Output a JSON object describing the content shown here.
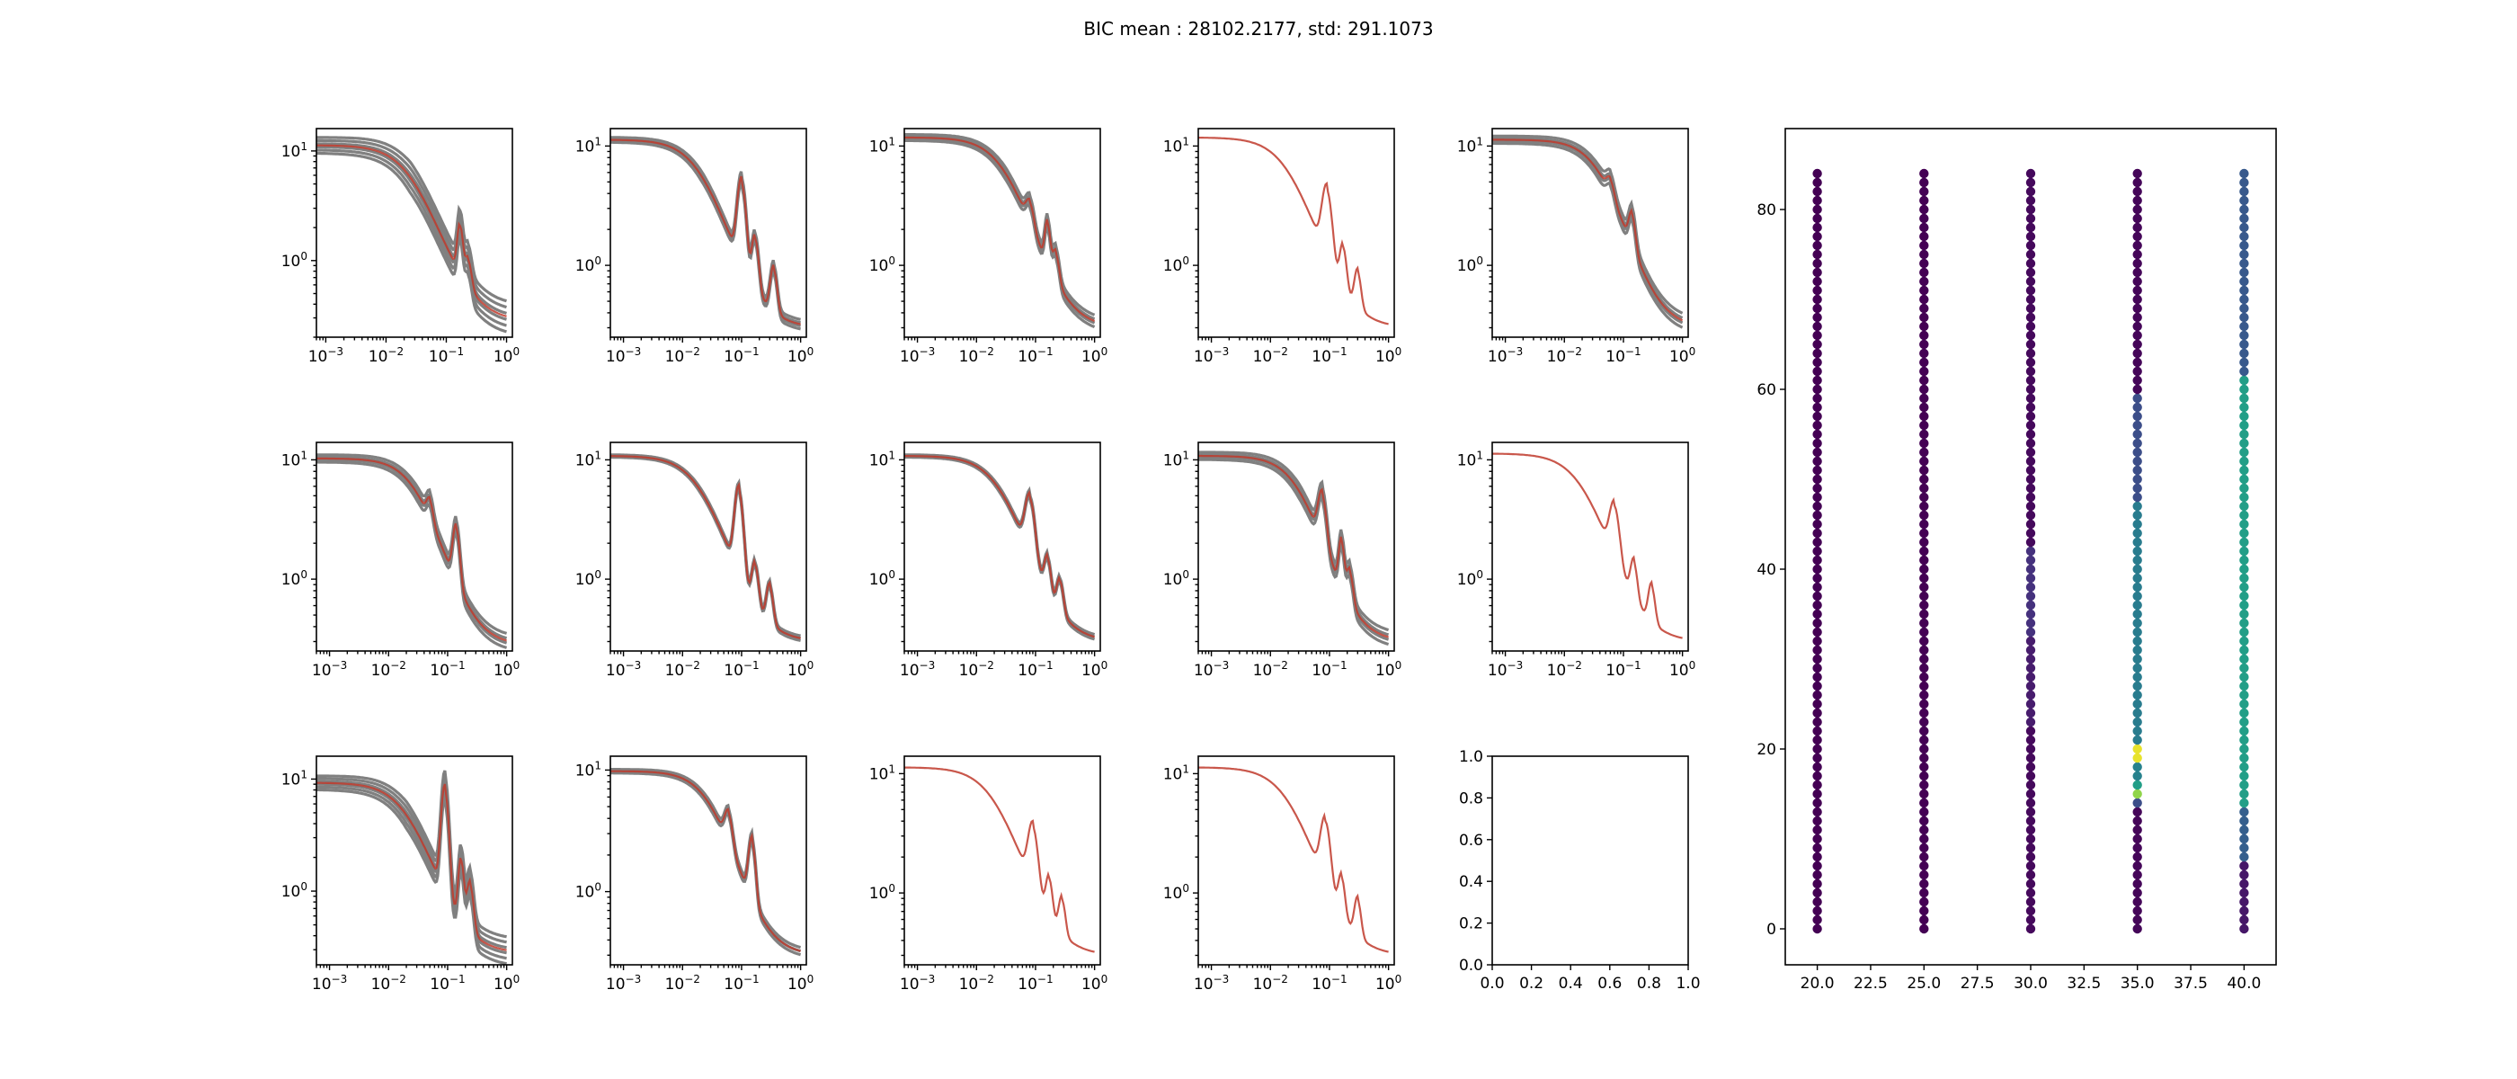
{
  "figure": {
    "title": "BIC mean : 28102.2177, std: 291.1073"
  },
  "chart_data": [
    {
      "type": "line",
      "panel": "r1c1",
      "xscale": "log",
      "yscale": "log",
      "xlim": [
        0.0007,
        1.25
      ],
      "ylim": [
        0.2,
        16
      ],
      "x_ticks": [
        0.001,
        0.01,
        0.1,
        1
      ],
      "x_tick_labels": [
        [
          "10",
          "−3"
        ],
        [
          "10",
          "−2"
        ],
        [
          "10",
          "−1"
        ],
        [
          "10",
          "0"
        ]
      ],
      "y_ticks": [
        1,
        10
      ],
      "y_tick_labels": [
        [
          "10",
          "0"
        ],
        [
          "10",
          "1"
        ]
      ],
      "band_spread": 0.14,
      "band_count": 6,
      "profile": {
        "plateau": 11,
        "corner": 0.025,
        "slope": 1.6,
        "floor": 0.28
      },
      "peaks": [
        {
          "x": 0.17,
          "h": 1.5,
          "w": 0.04
        },
        {
          "x": 0.23,
          "h": 0.5,
          "w": 0.05
        }
      ]
    },
    {
      "type": "line",
      "panel": "r1c2",
      "xscale": "log",
      "yscale": "log",
      "xlim": [
        0.0006,
        1.25
      ],
      "ylim": [
        0.25,
        14
      ],
      "x_ticks": [
        0.001,
        0.01,
        0.1,
        1
      ],
      "x_tick_labels": [
        [
          "10",
          "−3"
        ],
        [
          "10",
          "−2"
        ],
        [
          "10",
          "−1"
        ],
        [
          "10",
          "0"
        ]
      ],
      "y_ticks": [
        1,
        10
      ],
      "y_tick_labels": [
        [
          "10",
          "0"
        ],
        [
          "10",
          "1"
        ]
      ],
      "band_spread": 0.04,
      "band_count": 4,
      "profile": {
        "plateau": 11,
        "corner": 0.02,
        "slope": 1.6,
        "floor": 0.3
      },
      "peaks": [
        {
          "x": 0.1,
          "h": 4.5,
          "w": 0.06
        },
        {
          "x": 0.17,
          "h": 1.2,
          "w": 0.05
        },
        {
          "x": 0.35,
          "h": 0.6,
          "w": 0.05
        }
      ]
    },
    {
      "type": "line",
      "panel": "r1c3",
      "xscale": "log",
      "yscale": "log",
      "xlim": [
        0.0006,
        1.25
      ],
      "ylim": [
        0.25,
        14
      ],
      "x_ticks": [
        0.001,
        0.01,
        0.1,
        1
      ],
      "x_tick_labels": [
        [
          "10",
          "−3"
        ],
        [
          "10",
          "−2"
        ],
        [
          "10",
          "−1"
        ],
        [
          "10",
          "0"
        ]
      ],
      "y_ticks": [
        1,
        10
      ],
      "y_tick_labels": [
        [
          "10",
          "0"
        ],
        [
          "10",
          "1"
        ]
      ],
      "band_spread": 0.05,
      "band_count": 4,
      "profile": {
        "plateau": 11.5,
        "corner": 0.03,
        "slope": 1.6,
        "floor": 0.3
      },
      "peaks": [
        {
          "x": 0.08,
          "h": 1.3,
          "w": 0.06
        },
        {
          "x": 0.16,
          "h": 1.4,
          "w": 0.04
        },
        {
          "x": 0.22,
          "h": 0.6,
          "w": 0.05
        }
      ]
    },
    {
      "type": "line",
      "panel": "r1c4",
      "xscale": "log",
      "yscale": "log",
      "xlim": [
        0.0006,
        1.25
      ],
      "ylim": [
        0.25,
        14
      ],
      "x_ticks": [
        0.001,
        0.01,
        0.1,
        1
      ],
      "x_tick_labels": [
        [
          "10",
          "−3"
        ],
        [
          "10",
          "−2"
        ],
        [
          "10",
          "−1"
        ],
        [
          "10",
          "0"
        ]
      ],
      "y_ticks": [
        1,
        10
      ],
      "y_tick_labels": [
        [
          "10",
          "0"
        ],
        [
          "10",
          "1"
        ]
      ],
      "band_spread": 0.0,
      "band_count": 1,
      "profile": {
        "plateau": 11.5,
        "corner": 0.02,
        "slope": 1.6,
        "floor": 0.3
      },
      "peaks": [
        {
          "x": 0.09,
          "h": 3.6,
          "w": 0.07
        },
        {
          "x": 0.17,
          "h": 0.9,
          "w": 0.05
        },
        {
          "x": 0.3,
          "h": 0.5,
          "w": 0.05
        }
      ]
    },
    {
      "type": "line",
      "panel": "r1c5",
      "xscale": "log",
      "yscale": "log",
      "xlim": [
        0.0006,
        1.25
      ],
      "ylim": [
        0.25,
        14
      ],
      "x_ticks": [
        0.001,
        0.01,
        0.1,
        1
      ],
      "x_tick_labels": [
        [
          "10",
          "−3"
        ],
        [
          "10",
          "−2"
        ],
        [
          "10",
          "−1"
        ],
        [
          "10",
          "0"
        ]
      ],
      "y_ticks": [
        1,
        10
      ],
      "y_tick_labels": [
        [
          "10",
          "0"
        ],
        [
          "10",
          "1"
        ]
      ],
      "band_spread": 0.06,
      "band_count": 4,
      "profile": {
        "plateau": 11,
        "corner": 0.04,
        "slope": 1.7,
        "floor": 0.3
      },
      "peaks": [
        {
          "x": 0.06,
          "h": 1.5,
          "w": 0.06
        },
        {
          "x": 0.14,
          "h": 1.4,
          "w": 0.05
        }
      ]
    },
    {
      "type": "line",
      "panel": "r2c1",
      "xscale": "log",
      "yscale": "log",
      "xlim": [
        0.0006,
        1.25
      ],
      "ylim": [
        0.25,
        14
      ],
      "x_ticks": [
        0.001,
        0.01,
        0.1,
        1
      ],
      "x_tick_labels": [
        [
          "10",
          "−3"
        ],
        [
          "10",
          "−2"
        ],
        [
          "10",
          "−1"
        ],
        [
          "10",
          "0"
        ]
      ],
      "y_ticks": [
        1,
        10
      ],
      "y_tick_labels": [
        [
          "10",
          "0"
        ],
        [
          "10",
          "1"
        ]
      ],
      "band_spread": 0.06,
      "band_count": 4,
      "profile": {
        "plateau": 10,
        "corner": 0.03,
        "slope": 1.7,
        "floor": 0.28
      },
      "peaks": [
        {
          "x": 0.05,
          "h": 1.6,
          "w": 0.05
        },
        {
          "x": 0.14,
          "h": 2.0,
          "w": 0.05
        }
      ]
    },
    {
      "type": "line",
      "panel": "r2c2",
      "xscale": "log",
      "yscale": "log",
      "xlim": [
        0.0006,
        1.25
      ],
      "ylim": [
        0.25,
        14
      ],
      "x_ticks": [
        0.001,
        0.01,
        0.1,
        1
      ],
      "x_tick_labels": [
        [
          "10",
          "−3"
        ],
        [
          "10",
          "−2"
        ],
        [
          "10",
          "−1"
        ],
        [
          "10",
          "0"
        ]
      ],
      "y_ticks": [
        1,
        10
      ],
      "y_tick_labels": [
        [
          "10",
          "0"
        ],
        [
          "10",
          "1"
        ]
      ],
      "band_spread": 0.02,
      "band_count": 3,
      "profile": {
        "plateau": 10.5,
        "corner": 0.02,
        "slope": 1.6,
        "floor": 0.3
      },
      "peaks": [
        {
          "x": 0.09,
          "h": 5.0,
          "w": 0.06
        },
        {
          "x": 0.17,
          "h": 0.8,
          "w": 0.05
        },
        {
          "x": 0.3,
          "h": 0.5,
          "w": 0.05
        }
      ]
    },
    {
      "type": "line",
      "panel": "r2c3",
      "xscale": "log",
      "yscale": "log",
      "xlim": [
        0.0006,
        1.25
      ],
      "ylim": [
        0.25,
        14
      ],
      "x_ticks": [
        0.001,
        0.01,
        0.1,
        1
      ],
      "x_tick_labels": [
        [
          "10",
          "−3"
        ],
        [
          "10",
          "−2"
        ],
        [
          "10",
          "−1"
        ],
        [
          "10",
          "0"
        ]
      ],
      "y_ticks": [
        1,
        10
      ],
      "y_tick_labels": [
        [
          "10",
          "0"
        ],
        [
          "10",
          "1"
        ]
      ],
      "band_spread": 0.02,
      "band_count": 3,
      "profile": {
        "plateau": 10.5,
        "corner": 0.025,
        "slope": 1.6,
        "floor": 0.3
      },
      "peaks": [
        {
          "x": 0.08,
          "h": 3.6,
          "w": 0.07
        },
        {
          "x": 0.16,
          "h": 0.8,
          "w": 0.05
        },
        {
          "x": 0.26,
          "h": 0.5,
          "w": 0.05
        }
      ]
    },
    {
      "type": "line",
      "panel": "r2c4",
      "xscale": "log",
      "yscale": "log",
      "xlim": [
        0.0006,
        1.25
      ],
      "ylim": [
        0.25,
        14
      ],
      "x_ticks": [
        0.001,
        0.01,
        0.1,
        1
      ],
      "x_tick_labels": [
        [
          "10",
          "−3"
        ],
        [
          "10",
          "−2"
        ],
        [
          "10",
          "−1"
        ],
        [
          "10",
          "0"
        ]
      ],
      "y_ticks": [
        1,
        10
      ],
      "y_tick_labels": [
        [
          "10",
          "0"
        ],
        [
          "10",
          "1"
        ]
      ],
      "band_spread": 0.06,
      "band_count": 4,
      "profile": {
        "plateau": 10.5,
        "corner": 0.03,
        "slope": 1.7,
        "floor": 0.3
      },
      "peaks": [
        {
          "x": 0.075,
          "h": 3.5,
          "w": 0.06
        },
        {
          "x": 0.16,
          "h": 1.4,
          "w": 0.04
        },
        {
          "x": 0.22,
          "h": 0.6,
          "w": 0.05
        }
      ]
    },
    {
      "type": "line",
      "panel": "r2c5",
      "xscale": "log",
      "yscale": "log",
      "xlim": [
        0.0006,
        1.25
      ],
      "ylim": [
        0.25,
        14
      ],
      "x_ticks": [
        0.001,
        0.01,
        0.1,
        1
      ],
      "x_tick_labels": [
        [
          "10",
          "−3"
        ],
        [
          "10",
          "−2"
        ],
        [
          "10",
          "−1"
        ],
        [
          "10",
          "0"
        ]
      ],
      "y_ticks": [
        1,
        10
      ],
      "y_tick_labels": [
        [
          "10",
          "0"
        ],
        [
          "10",
          "1"
        ]
      ],
      "band_spread": 0.0,
      "band_count": 1,
      "profile": {
        "plateau": 11,
        "corner": 0.02,
        "slope": 1.6,
        "floor": 0.3
      },
      "peaks": [
        {
          "x": 0.07,
          "h": 3.0,
          "w": 0.07
        },
        {
          "x": 0.15,
          "h": 0.8,
          "w": 0.05
        },
        {
          "x": 0.3,
          "h": 0.5,
          "w": 0.05
        }
      ]
    },
    {
      "type": "line",
      "panel": "r3c1",
      "xscale": "log",
      "yscale": "log",
      "xlim": [
        0.0006,
        1.25
      ],
      "ylim": [
        0.22,
        16
      ],
      "x_ticks": [
        0.001,
        0.01,
        0.1,
        1
      ],
      "x_tick_labels": [
        [
          "10",
          "−3"
        ],
        [
          "10",
          "−2"
        ],
        [
          "10",
          "−1"
        ],
        [
          "10",
          "0"
        ]
      ],
      "y_ticks": [
        1,
        10
      ],
      "y_tick_labels": [
        [
          "10",
          "0"
        ],
        [
          "10",
          "1"
        ]
      ],
      "band_spread": 0.12,
      "band_count": 6,
      "profile": {
        "plateau": 9,
        "corner": 0.02,
        "slope": 1.6,
        "floor": 0.28
      },
      "peaks": [
        {
          "x": 0.09,
          "h": 8.0,
          "w": 0.05
        },
        {
          "x": 0.17,
          "h": 1.5,
          "w": 0.04
        },
        {
          "x": 0.24,
          "h": 0.8,
          "w": 0.05
        }
      ]
    },
    {
      "type": "line",
      "panel": "r3c2",
      "xscale": "log",
      "yscale": "log",
      "xlim": [
        0.0006,
        1.25
      ],
      "ylim": [
        0.25,
        13
      ],
      "x_ticks": [
        0.001,
        0.01,
        0.1,
        1
      ],
      "x_tick_labels": [
        [
          "10",
          "−3"
        ],
        [
          "10",
          "−2"
        ],
        [
          "10",
          "−1"
        ],
        [
          "10",
          "0"
        ]
      ],
      "y_ticks": [
        1,
        10
      ],
      "y_tick_labels": [
        [
          "10",
          "0"
        ],
        [
          "10",
          "1"
        ]
      ],
      "band_spread": 0.03,
      "band_count": 3,
      "profile": {
        "plateau": 9.5,
        "corner": 0.03,
        "slope": 1.7,
        "floor": 0.3
      },
      "peaks": [
        {
          "x": 0.06,
          "h": 2.2,
          "w": 0.06
        },
        {
          "x": 0.15,
          "h": 2.0,
          "w": 0.05
        }
      ]
    },
    {
      "type": "line",
      "panel": "r3c3",
      "xscale": "log",
      "yscale": "log",
      "xlim": [
        0.0006,
        1.25
      ],
      "ylim": [
        0.25,
        14
      ],
      "x_ticks": [
        0.001,
        0.01,
        0.1,
        1
      ],
      "x_tick_labels": [
        [
          "10",
          "−3"
        ],
        [
          "10",
          "−2"
        ],
        [
          "10",
          "−1"
        ],
        [
          "10",
          "0"
        ]
      ],
      "y_ticks": [
        1,
        10
      ],
      "y_tick_labels": [
        [
          "10",
          "0"
        ],
        [
          "10",
          "1"
        ]
      ],
      "band_spread": 0.0,
      "band_count": 1,
      "profile": {
        "plateau": 11,
        "corner": 0.02,
        "slope": 1.6,
        "floor": 0.3
      },
      "peaks": [
        {
          "x": 0.09,
          "h": 2.8,
          "w": 0.07
        },
        {
          "x": 0.17,
          "h": 0.8,
          "w": 0.05
        },
        {
          "x": 0.28,
          "h": 0.5,
          "w": 0.05
        }
      ]
    },
    {
      "type": "line",
      "panel": "r3c4",
      "xscale": "log",
      "yscale": "log",
      "xlim": [
        0.0006,
        1.25
      ],
      "ylim": [
        0.25,
        14
      ],
      "x_ticks": [
        0.001,
        0.01,
        0.1,
        1
      ],
      "x_tick_labels": [
        [
          "10",
          "−3"
        ],
        [
          "10",
          "−2"
        ],
        [
          "10",
          "−1"
        ],
        [
          "10",
          "0"
        ]
      ],
      "y_ticks": [
        1,
        10
      ],
      "y_tick_labels": [
        [
          "10",
          "0"
        ],
        [
          "10",
          "1"
        ]
      ],
      "band_spread": 0.0,
      "band_count": 1,
      "profile": {
        "plateau": 11,
        "corner": 0.02,
        "slope": 1.6,
        "floor": 0.3
      },
      "peaks": [
        {
          "x": 0.085,
          "h": 3.2,
          "w": 0.07
        },
        {
          "x": 0.16,
          "h": 0.8,
          "w": 0.05
        },
        {
          "x": 0.3,
          "h": 0.5,
          "w": 0.05
        }
      ]
    },
    {
      "type": "empty",
      "panel": "r3c5",
      "xlim": [
        0,
        1
      ],
      "ylim": [
        0,
        1
      ],
      "x_tick_labels": [
        "0.0",
        "0.2",
        "0.4",
        "0.6",
        "0.8",
        "1.0"
      ],
      "y_tick_labels": [
        "0.0",
        "0.2",
        "0.4",
        "0.6",
        "0.8",
        "1.0"
      ]
    },
    {
      "type": "scatter",
      "panel": "right",
      "xlim": [
        18.5,
        41.5
      ],
      "ylim": [
        -4,
        89
      ],
      "x_tick_labels": [
        "20.0",
        "22.5",
        "25.0",
        "27.5",
        "30.0",
        "32.5",
        "35.0",
        "37.5",
        "40.0"
      ],
      "y_tick_labels": [
        "0",
        "20",
        "40",
        "60",
        "80"
      ],
      "columns_x": [
        20,
        25,
        30,
        35,
        40
      ],
      "points_per_column": 85,
      "y_range": [
        0,
        84
      ],
      "colormap": "viridis",
      "color_values": {
        "20": [
          [
            0,
            84,
            0.0
          ]
        ],
        "25": [
          [
            0,
            84,
            0.0
          ]
        ],
        "30": [
          [
            0,
            22,
            0.03
          ],
          [
            23,
            32,
            0.1
          ],
          [
            33,
            42,
            0.18
          ],
          [
            43,
            84,
            0.03
          ]
        ],
        "35": [
          [
            0,
            13,
            0.02
          ],
          [
            14,
            14,
            0.3
          ],
          [
            15,
            15,
            0.9
          ],
          [
            16,
            16,
            0.7
          ],
          [
            17,
            18,
            0.55
          ],
          [
            19,
            20,
            0.98
          ],
          [
            21,
            47,
            0.52
          ],
          [
            48,
            59,
            0.3
          ],
          [
            60,
            84,
            0.02
          ]
        ],
        "40": [
          [
            0,
            7,
            0.08
          ],
          [
            8,
            13,
            0.38
          ],
          [
            14,
            61,
            0.7
          ],
          [
            62,
            84,
            0.35
          ]
        ]
      }
    }
  ]
}
